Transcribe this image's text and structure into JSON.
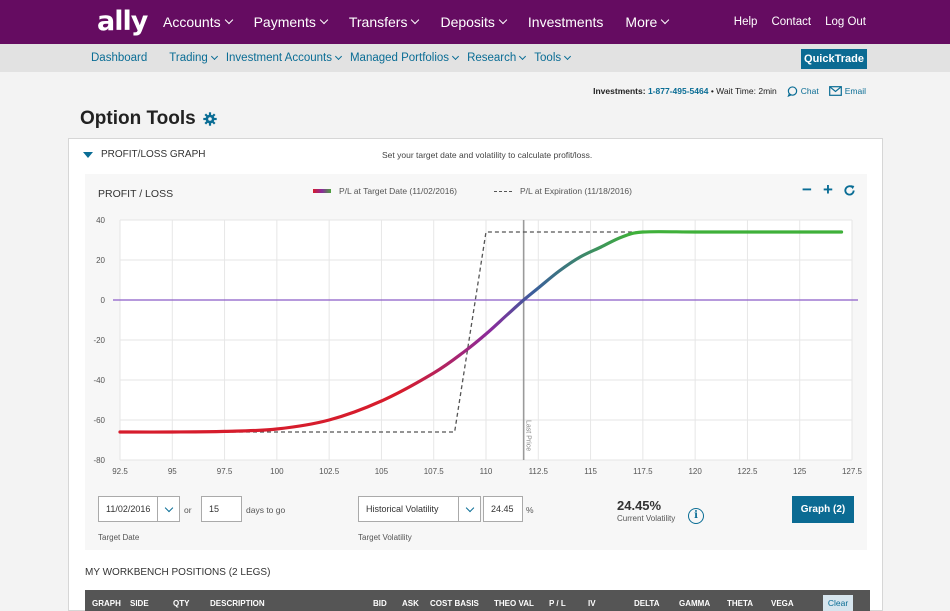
{
  "brand": {
    "logo": "ally"
  },
  "topnav": {
    "items": [
      "Accounts",
      "Payments",
      "Transfers",
      "Deposits",
      "Investments",
      "More"
    ],
    "util": [
      "Help",
      "Contact",
      "Log Out"
    ]
  },
  "subnav": {
    "items": [
      "Dashboard",
      "Trading",
      "Investment Accounts",
      "Managed Portfolios",
      "Research",
      "Tools"
    ],
    "quicktrade": "QuickTrade"
  },
  "contact": {
    "label": "Investments:",
    "phone": "1-877-495-5464",
    "wait": "• Wait Time: 2min",
    "chat": "Chat",
    "email": "Email"
  },
  "page": {
    "title": "Option Tools"
  },
  "panel": {
    "header": "PROFIT/LOSS GRAPH",
    "hint": "Set your target date and volatility to calculate profit/loss."
  },
  "chart": {
    "title": "PROFIT / LOSS",
    "legend_target": "P/L at Target Date (11/02/2016)",
    "legend_expiry": "P/L at Expiration (11/18/2016)",
    "last_price_label": "Last Price",
    "zoom_out": "−",
    "zoom_in": "+",
    "colors": {
      "loss": "#d61c2c",
      "mid": "#8a2b9c",
      "gain": "#3fb03a",
      "zero_line": "#8b5cc8",
      "expiry": "#555555"
    }
  },
  "chart_data": {
    "type": "line",
    "title": "PROFIT / LOSS",
    "xlabel": "",
    "ylabel": "",
    "xlim": [
      92.5,
      127.5
    ],
    "ylim": [
      -80,
      40
    ],
    "x_ticks": [
      "92.5",
      "95",
      "97.5",
      "100",
      "102.5",
      "105",
      "107.5",
      "110",
      "112.5",
      "115",
      "117.5",
      "120",
      "122.5",
      "125",
      "127.5"
    ],
    "y_ticks": [
      "40",
      "20",
      "0",
      "-20",
      "-40",
      "-60",
      "-80"
    ],
    "last_price": 111.8,
    "series": [
      {
        "name": "P/L at Target Date (11/02/2016)",
        "style": "solid-gradient",
        "x": [
          92.5,
          95,
          97.5,
          100,
          102.5,
          105,
          107.5,
          109,
          110,
          111,
          111.8,
          112.5,
          113.5,
          114.5,
          115.5,
          116.5,
          117.5,
          120,
          122.5,
          125,
          127
        ],
        "y": [
          -66,
          -66,
          -65.7,
          -64.5,
          -60,
          -50.5,
          -36.5,
          -25.5,
          -17,
          -7.5,
          0,
          6,
          14.5,
          21.5,
          26.5,
          31.5,
          34,
          34,
          34,
          34,
          34
        ]
      },
      {
        "name": "P/L at Expiration (11/18/2016)",
        "style": "dashed",
        "x": [
          92.5,
          108.5,
          110,
          127
        ],
        "y": [
          -66,
          -66,
          34,
          34
        ]
      }
    ],
    "grid": true,
    "legend_position": "top-center"
  },
  "controls": {
    "target_date": "11/02/2016",
    "or_label": "or",
    "days": "15",
    "days_label": "days to go",
    "target_date_label": "Target Date",
    "volatility_type": "Historical Volatility",
    "volatility_value": "24.45",
    "percent_label": "%",
    "target_volatility_label": "Target Volatility",
    "current_volatility": "24.45%",
    "current_volatility_label": "Current Volatility",
    "info": "i",
    "graph_button": "Graph (2)"
  },
  "workbench": {
    "title": "MY WORKBENCH POSITIONS (2 LEGS)",
    "columns": [
      "GRAPH",
      "SIDE",
      "QTY",
      "DESCRIPTION",
      "BID",
      "ASK",
      "COST BASIS",
      "THEO VAL",
      "P / L",
      "IV",
      "DELTA",
      "GAMMA",
      "THETA",
      "VEGA"
    ],
    "clear": "Clear"
  }
}
